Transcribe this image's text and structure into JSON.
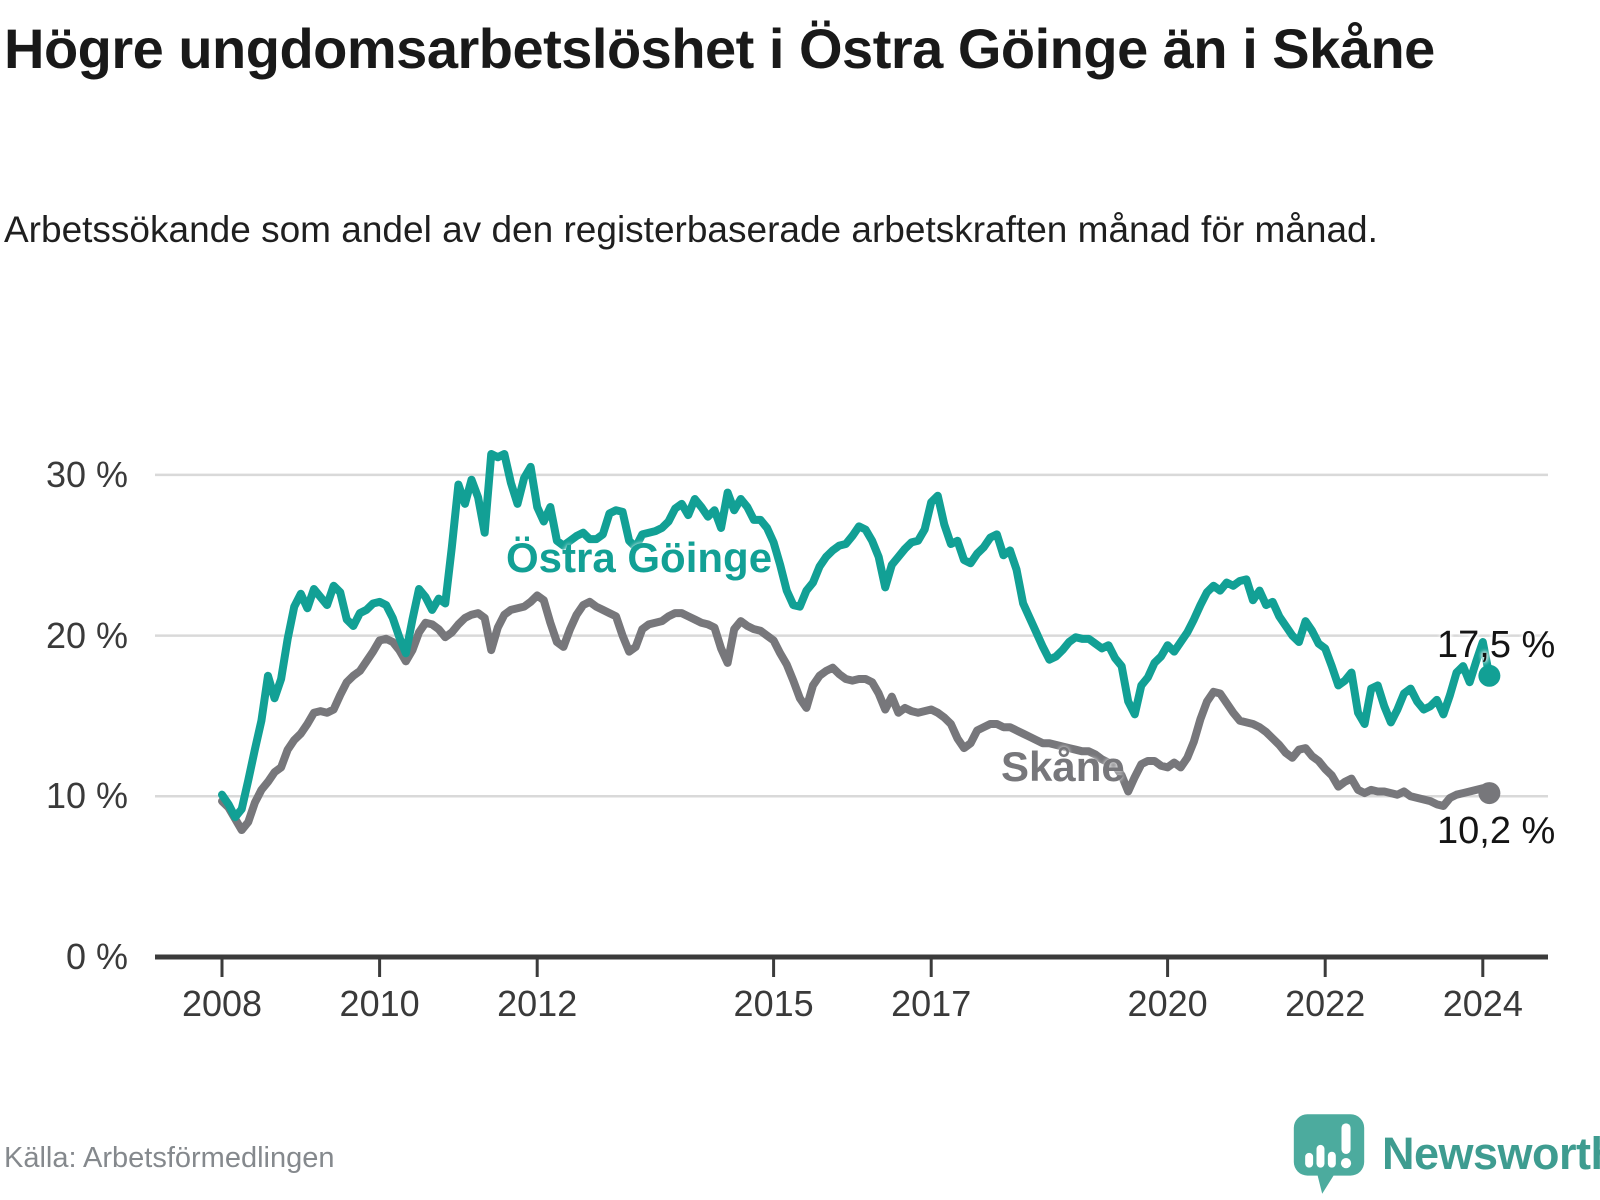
{
  "header": {
    "title": "Högre ungdomsarbetslöshet i Östra Göinge än i Skåne",
    "subtitle": "Arbetssökande som andel av den registerbaserade arbetskraften månad för månad."
  },
  "footer": {
    "source": "Källa: Arbetsförmedlingen",
    "brand": "Newsworthy",
    "brand_icon": "newsworthy-speech-bubble-bar-chart-icon",
    "brand_color": "#3E9C90",
    "brand_icon_color": "#4CAB9E"
  },
  "chart_data": {
    "type": "line",
    "title": "Högre ungdomsarbetslöshet i Östra Göinge än i Skåne",
    "subtitle": "Arbetssökande som andel av den registerbaserade arbetskraften månad för månad.",
    "unit": "%",
    "grid": "horizontal",
    "legend_position": "inline-labels",
    "x_axis": {
      "ticks": [
        2008,
        2010,
        2012,
        2015,
        2017,
        2020,
        2022,
        2024
      ],
      "labels": [
        "2008",
        "2010",
        "2012",
        "2015",
        "2017",
        "2020",
        "2022",
        "2024"
      ],
      "range_start": 2008.0,
      "range_end": 2024.17
    },
    "y_axis": {
      "ticks": [
        0,
        10,
        20,
        30
      ],
      "labels": [
        "0 %",
        "10 %",
        "20 %",
        "30 %"
      ],
      "ylim": [
        0,
        31.5
      ],
      "gridline_color": "#D9D9D9",
      "axis_color": "#3B3B3B"
    },
    "series": [
      {
        "name": "Skåne",
        "color": "#77777B",
        "end_label": "10,2 %",
        "end_value": 10.2,
        "start": 2008.0,
        "step": 0.0833333,
        "values": [
          9.7,
          9.3,
          8.6,
          7.9,
          8.4,
          9.6,
          10.4,
          10.9,
          11.5,
          11.8,
          12.9,
          13.5,
          13.9,
          14.5,
          15.2,
          15.3,
          15.2,
          15.4,
          16.3,
          17.1,
          17.5,
          17.8,
          18.4,
          19.0,
          19.7,
          19.8,
          19.6,
          19.1,
          18.4,
          19.1,
          20.2,
          20.8,
          20.7,
          20.4,
          19.9,
          20.2,
          20.7,
          21.1,
          21.3,
          21.4,
          21.1,
          19.1,
          20.5,
          21.3,
          21.6,
          21.7,
          21.8,
          22.1,
          22.5,
          22.2,
          20.8,
          19.6,
          19.3,
          20.4,
          21.3,
          21.9,
          22.1,
          21.8,
          21.6,
          21.4,
          21.2,
          20.0,
          19.0,
          19.3,
          20.4,
          20.7,
          20.8,
          20.9,
          21.2,
          21.4,
          21.4,
          21.2,
          21.0,
          20.8,
          20.7,
          20.5,
          19.2,
          18.3,
          20.4,
          20.9,
          20.6,
          20.4,
          20.3,
          20.0,
          19.7,
          18.9,
          18.2,
          17.2,
          16.1,
          15.5,
          16.9,
          17.5,
          17.8,
          18.0,
          17.6,
          17.3,
          17.2,
          17.3,
          17.3,
          17.1,
          16.4,
          15.4,
          16.2,
          15.2,
          15.5,
          15.3,
          15.2,
          15.3,
          15.4,
          15.2,
          14.9,
          14.5,
          13.6,
          13.0,
          13.3,
          14.1,
          14.3,
          14.5,
          14.5,
          14.3,
          14.3,
          14.1,
          13.9,
          13.7,
          13.5,
          13.3,
          13.3,
          13.2,
          13.1,
          13.0,
          12.9,
          12.8,
          12.8,
          12.6,
          12.3,
          12.1,
          11.9,
          11.3,
          10.3,
          11.2,
          12.0,
          12.2,
          12.2,
          11.9,
          11.8,
          12.1,
          11.8,
          12.4,
          13.4,
          14.8,
          15.9,
          16.5,
          16.4,
          15.8,
          15.2,
          14.7,
          14.6,
          14.5,
          14.3,
          14.0,
          13.6,
          13.2,
          12.7,
          12.4,
          12.9,
          13.0,
          12.5,
          12.2,
          11.7,
          11.3,
          10.6,
          10.9,
          11.1,
          10.4,
          10.2,
          10.4,
          10.3,
          10.3,
          10.2,
          10.1,
          10.3,
          10.0,
          9.9,
          9.8,
          9.7,
          9.5,
          9.4,
          9.9,
          10.1,
          10.2,
          10.3,
          10.4,
          10.5,
          10.2
        ]
      },
      {
        "name": "Östra Göinge",
        "color": "#12A095",
        "end_label": "17,5 %",
        "end_value": 17.5,
        "start": 2008.0,
        "step": 0.0833333,
        "values": [
          10.1,
          9.5,
          8.7,
          9.2,
          11.0,
          12.9,
          14.7,
          17.5,
          16.1,
          17.3,
          19.8,
          21.8,
          22.6,
          21.7,
          22.9,
          22.4,
          21.9,
          23.1,
          22.7,
          21.0,
          20.6,
          21.4,
          21.6,
          22.0,
          22.1,
          21.9,
          21.1,
          19.9,
          18.9,
          21.0,
          22.9,
          22.4,
          21.6,
          22.3,
          22.0,
          25.5,
          29.4,
          28.2,
          29.7,
          28.6,
          26.4,
          31.3,
          31.1,
          31.3,
          29.5,
          28.2,
          29.8,
          30.5,
          28.0,
          27.1,
          28.0,
          25.9,
          25.6,
          25.9,
          26.2,
          26.4,
          26.0,
          26.0,
          26.3,
          27.6,
          27.8,
          27.7,
          25.9,
          25.5,
          26.3,
          26.4,
          26.5,
          26.7,
          27.1,
          27.9,
          28.2,
          27.5,
          28.5,
          28.0,
          27.4,
          27.8,
          26.7,
          28.9,
          27.8,
          28.5,
          28.0,
          27.2,
          27.2,
          26.7,
          25.8,
          24.4,
          22.8,
          21.9,
          21.8,
          22.8,
          23.3,
          24.3,
          24.9,
          25.3,
          25.6,
          25.7,
          26.2,
          26.8,
          26.6,
          25.9,
          24.9,
          23.0,
          24.4,
          24.9,
          25.4,
          25.8,
          25.9,
          26.6,
          28.3,
          28.7,
          26.9,
          25.7,
          25.9,
          24.7,
          24.5,
          25.1,
          25.5,
          26.1,
          26.3,
          25.0,
          25.3,
          24.1,
          22.0,
          21.1,
          20.2,
          19.3,
          18.5,
          18.7,
          19.1,
          19.6,
          19.9,
          19.8,
          19.8,
          19.5,
          19.2,
          19.4,
          18.6,
          18.1,
          15.9,
          15.1,
          16.9,
          17.4,
          18.3,
          18.7,
          19.4,
          19.0,
          19.6,
          20.2,
          21.0,
          21.9,
          22.7,
          23.1,
          22.8,
          23.3,
          23.1,
          23.4,
          23.5,
          22.2,
          22.8,
          21.9,
          22.1,
          21.2,
          20.6,
          20.0,
          19.6,
          20.9,
          20.3,
          19.5,
          19.2,
          18.1,
          16.9,
          17.2,
          17.7,
          15.2,
          14.5,
          16.7,
          16.9,
          15.6,
          14.6,
          15.4,
          16.4,
          16.7,
          15.9,
          15.4,
          15.6,
          16.0,
          15.1,
          16.3,
          17.7,
          18.1,
          17.1,
          18.4,
          19.6,
          17.5
        ]
      }
    ]
  }
}
